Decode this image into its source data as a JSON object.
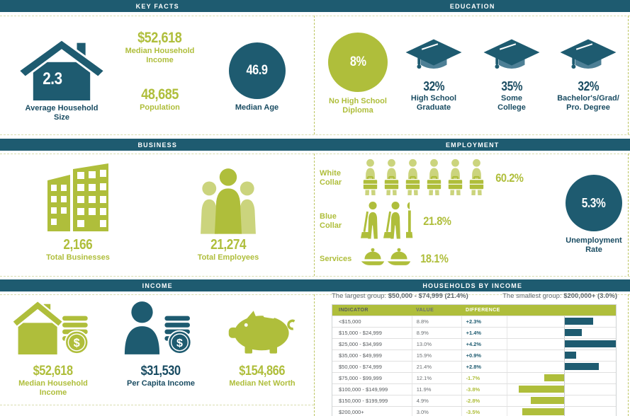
{
  "colors": {
    "teal": "#1E5B70",
    "teal_text": "#1A4C62",
    "teal_mid": "#4D7F95",
    "green": "#AFBE3B",
    "green_light": "#CBD47D"
  },
  "key_facts": {
    "header": "KEY FACTS",
    "avg_household_size": {
      "value": "2.3",
      "label": "Average Household\nSize"
    },
    "median_household_income": {
      "value": "$52,618",
      "label": "Median Household\nIncome"
    },
    "population": {
      "value": "48,685",
      "label": "Population"
    },
    "median_age": {
      "value": "46.9",
      "label": "Median Age"
    }
  },
  "education": {
    "header": "EDUCATION",
    "items": [
      {
        "value": "8%",
        "label": "No High School\nDiploma",
        "icon": "percent-circle",
        "style": "green-circle"
      },
      {
        "value": "32%",
        "label": "High School\nGraduate",
        "icon": "graduation-cap",
        "style": "cap"
      },
      {
        "value": "35%",
        "label": "Some\nCollege",
        "icon": "graduation-cap",
        "style": "cap"
      },
      {
        "value": "32%",
        "label": "Bachelor's/Grad/\nPro. Degree",
        "icon": "graduation-cap",
        "style": "cap"
      }
    ]
  },
  "business": {
    "header": "BUSINESS",
    "total_businesses": {
      "value": "2,166",
      "label": "Total Businesses",
      "icon": "office-building"
    },
    "total_employees": {
      "value": "21,274",
      "label": "Total Employees",
      "icon": "people-group"
    }
  },
  "employment": {
    "header": "EMPLOYMENT",
    "categories": [
      {
        "label": "White\nCollar",
        "pct": "60.2%",
        "icons": [
          "briefcase-person",
          "briefcase-person",
          "briefcase-person",
          "briefcase-person",
          "briefcase-person",
          "briefcase-person"
        ]
      },
      {
        "label": "Blue\nCollar",
        "pct": "21.8%",
        "icons": [
          "mop-person",
          "mop-person",
          "mop-partial"
        ]
      },
      {
        "label": "Services",
        "pct": "18.1%",
        "icons": [
          "cloche",
          "cloche"
        ]
      }
    ],
    "unemployment": {
      "value": "5.3%",
      "label": "Unemployment\nRate"
    }
  },
  "income": {
    "header": "INCOME",
    "items": [
      {
        "value": "$52,618",
        "label": "Median Household\nIncome",
        "icon": "house-coins",
        "theme": "green"
      },
      {
        "value": "$31,530",
        "label": "Per Capita Income",
        "icon": "person-coins",
        "theme": "teal"
      },
      {
        "value": "$154,866",
        "label": "Median Net Worth",
        "icon": "piggy-bank",
        "theme": "green"
      }
    ]
  },
  "households_by_income": {
    "header": "HOUSEHOLDS BY INCOME",
    "largest_group_prefix": "The largest group:",
    "largest_group_value": "$50,000 - $74,999 (21.4%)",
    "smallest_group_prefix": "The smallest group:",
    "smallest_group_value": "$200,000+ (3.0%)",
    "columns": [
      "INDICATOR",
      "VALUE",
      "DIFFERENCE"
    ],
    "rows": [
      {
        "indicator": "<$15,000",
        "value": "8.8%",
        "difference": "+2.3%",
        "diff_num": 2.3
      },
      {
        "indicator": "$15,000 - $24,999",
        "value": "8.9%",
        "difference": "+1.4%",
        "diff_num": 1.4
      },
      {
        "indicator": "$25,000 - $34,999",
        "value": "13.0%",
        "difference": "+4.2%",
        "diff_num": 4.2
      },
      {
        "indicator": "$35,000 - $49,999",
        "value": "15.9%",
        "difference": "+0.9%",
        "diff_num": 0.9
      },
      {
        "indicator": "$50,000 - $74,999",
        "value": "21.4%",
        "difference": "+2.8%",
        "diff_num": 2.8
      },
      {
        "indicator": "$75,000 - $99,999",
        "value": "12.1%",
        "difference": "-1.7%",
        "diff_num": -1.7
      },
      {
        "indicator": "$100,000 - $149,999",
        "value": "11.9%",
        "difference": "-3.8%",
        "diff_num": -3.8
      },
      {
        "indicator": "$150,000 - $199,999",
        "value": "4.9%",
        "difference": "-2.8%",
        "diff_num": -2.8
      },
      {
        "indicator": "$200,000+",
        "value": "3.0%",
        "difference": "-3.5%",
        "diff_num": -3.5
      }
    ]
  },
  "chart_data": [
    {
      "type": "table",
      "title": "Households By Income",
      "columns": [
        "Indicator",
        "Value",
        "Difference"
      ],
      "rows": [
        [
          "<$15,000",
          "8.8%",
          "+2.3%"
        ],
        [
          "$15,000 - $24,999",
          "8.9%",
          "+1.4%"
        ],
        [
          "$25,000 - $34,999",
          "13.0%",
          "+4.2%"
        ],
        [
          "$35,000 - $49,999",
          "15.9%",
          "+0.9%"
        ],
        [
          "$50,000 - $74,999",
          "21.4%",
          "+2.8%"
        ],
        [
          "$75,000 - $99,999",
          "12.1%",
          "-1.7%"
        ],
        [
          "$100,000 - $149,999",
          "11.9%",
          "-3.8%"
        ],
        [
          "$150,000 - $199,999",
          "4.9%",
          "-2.8%"
        ],
        [
          "$200,000+",
          "3.0%",
          "-3.5%"
        ]
      ]
    },
    {
      "type": "bar",
      "title": "Households By Income — Difference",
      "orientation": "horizontal",
      "categories": [
        "<$15,000",
        "$15,000 - $24,999",
        "$25,000 - $34,999",
        "$35,000 - $49,999",
        "$50,000 - $74,999",
        "$75,000 - $99,999",
        "$100,000 - $149,999",
        "$150,000 - $199,999",
        "$200,000+"
      ],
      "values": [
        2.3,
        1.4,
        4.2,
        0.9,
        2.8,
        -1.7,
        -3.8,
        -2.8,
        -3.5
      ],
      "xlim": [
        -4.7,
        4.7
      ],
      "colors": {
        "positive": "#1E5B70",
        "negative": "#AFBE3B"
      },
      "grid": true,
      "legend": false
    },
    {
      "type": "bar",
      "title": "Education",
      "categories": [
        "No High School Diploma",
        "High School Graduate",
        "Some College",
        "Bachelor's/Grad/Pro. Degree"
      ],
      "values": [
        8,
        32,
        35,
        32
      ]
    },
    {
      "type": "bar",
      "title": "Employment",
      "categories": [
        "White Collar",
        "Blue Collar",
        "Services"
      ],
      "values": [
        60.2,
        21.8,
        18.1
      ]
    }
  ]
}
